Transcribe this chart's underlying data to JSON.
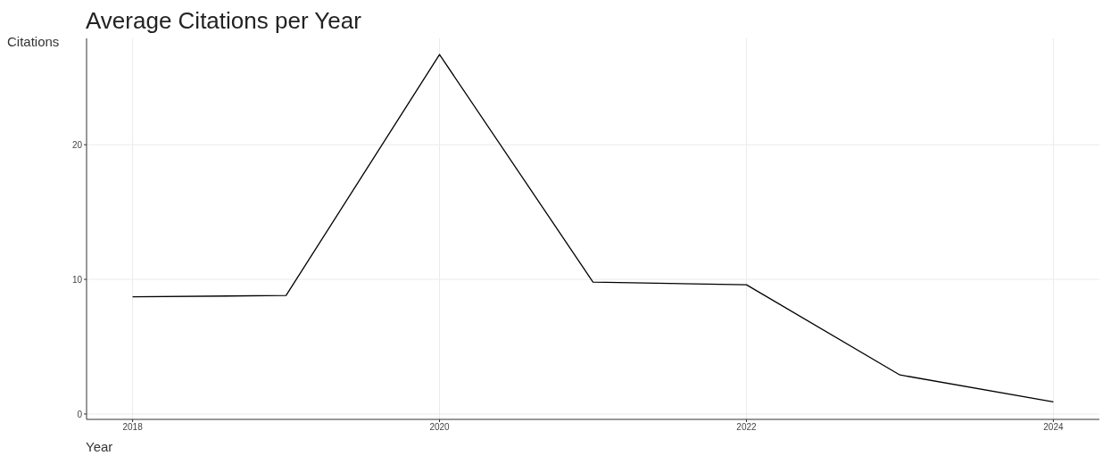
{
  "chart_data": {
    "type": "line",
    "title": "Average Citations per Year",
    "xlabel": "Year",
    "ylabel": "Citations",
    "x": [
      2018,
      2019,
      2020,
      2021,
      2022,
      2023,
      2024
    ],
    "series": [
      {
        "color": "#000000",
        "values": [
          8.7,
          8.8,
          26.7,
          9.8,
          9.6,
          2.9,
          0.9
        ]
      }
    ],
    "xlim": [
      2017.7,
      2024.3
    ],
    "xticks": [
      2018,
      2020,
      2022,
      2024
    ],
    "ylim": [
      -0.4,
      27.9
    ],
    "yticks": [
      0,
      10,
      20
    ],
    "grid": true,
    "marker": "none",
    "line_style": "solid",
    "legend": false
  }
}
